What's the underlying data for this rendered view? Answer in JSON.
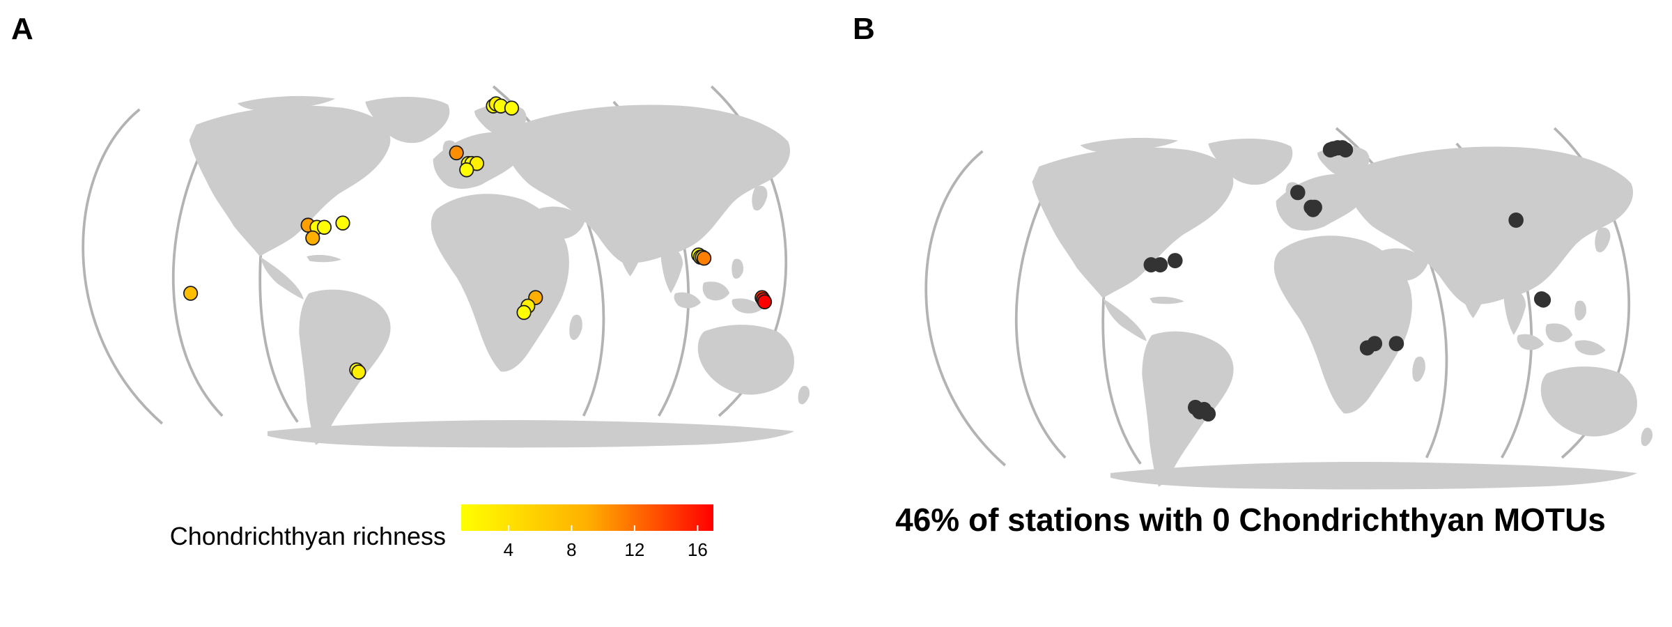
{
  "panels": {
    "a": {
      "letter": "A"
    },
    "b": {
      "letter": "B"
    }
  },
  "legend": {
    "title": "Chondrichthyan richness",
    "ticks": [
      "4",
      "8",
      "12",
      "16"
    ],
    "gradient_low": "#ffff00",
    "gradient_high": "#ff0000"
  },
  "caption": "46% of stations with 0 Chondrichthyan MOTUs",
  "colors": {
    "land": "#cccccc",
    "gridline": "#b3b3b3",
    "absent_station": "#333333",
    "outline": "#1a1a1a"
  },
  "chart_data": [
    {
      "type": "scatter",
      "panel": "A",
      "description_encoding": "color = richness",
      "points": [
        {
          "lon": 20,
          "lat": 70,
          "richness": 1
        },
        {
          "lon": 22,
          "lat": 71,
          "richness": 2
        },
        {
          "lon": 25,
          "lat": 70,
          "richness": 1
        },
        {
          "lon": 32,
          "lat": 69,
          "richness": 1
        },
        {
          "lon": -4,
          "lat": 48,
          "richness": 8
        },
        {
          "lon": 3,
          "lat": 43,
          "richness": 1
        },
        {
          "lon": 5,
          "lat": 43,
          "richness": 1
        },
        {
          "lon": 8,
          "lat": 43,
          "richness": 2
        },
        {
          "lon": 2,
          "lat": 40,
          "richness": 1
        },
        {
          "lon": -85,
          "lat": 14,
          "richness": 7
        },
        {
          "lon": -80,
          "lat": 13,
          "richness": 1
        },
        {
          "lon": -76,
          "lat": 13,
          "richness": 1
        },
        {
          "lon": -66,
          "lat": 15,
          "richness": 1
        },
        {
          "lon": -82,
          "lat": 8,
          "richness": 6
        },
        {
          "lon": -150,
          "lat": -18,
          "richness": 5
        },
        {
          "lon": 40,
          "lat": -20,
          "richness": 6
        },
        {
          "lon": 36,
          "lat": -24,
          "richness": 2
        },
        {
          "lon": 34,
          "lat": -27,
          "richness": 1
        },
        {
          "lon": 128,
          "lat": 0,
          "richness": 1
        },
        {
          "lon": 129,
          "lat": -1,
          "richness": 2
        },
        {
          "lon": 130,
          "lat": -1,
          "richness": 3
        },
        {
          "lon": 131,
          "lat": -1.5,
          "richness": 9
        },
        {
          "lon": 165,
          "lat": -20,
          "richness": 14
        },
        {
          "lon": 166,
          "lat": -21,
          "richness": 16
        },
        {
          "lon": 167,
          "lat": -22,
          "richness": 17
        },
        {
          "lon": -65,
          "lat": -54,
          "richness": 1
        },
        {
          "lon": -64,
          "lat": -55,
          "richness": 2
        }
      ]
    },
    {
      "type": "scatter",
      "panel": "B",
      "description_encoding": "stations with 0 MOTUs",
      "points": [
        {
          "lon": 16,
          "lat": 69
        },
        {
          "lon": 18,
          "lat": 69.5
        },
        {
          "lon": 21,
          "lat": 70
        },
        {
          "lon": 24,
          "lat": 70
        },
        {
          "lon": 26,
          "lat": 69
        },
        {
          "lon": -5,
          "lat": 49
        },
        {
          "lon": 3,
          "lat": 42
        },
        {
          "lon": 5,
          "lat": 42
        },
        {
          "lon": 4,
          "lat": 41
        },
        {
          "lon": 120,
          "lat": 36
        },
        {
          "lon": -85,
          "lat": 15
        },
        {
          "lon": -80,
          "lat": 15
        },
        {
          "lon": -72,
          "lat": 17
        },
        {
          "lon": 128,
          "lat": -1
        },
        {
          "lon": 129,
          "lat": -1.5
        },
        {
          "lon": 38,
          "lat": -22
        },
        {
          "lon": 34,
          "lat": -24
        },
        {
          "lon": 50,
          "lat": -22
        },
        {
          "lon": -67,
          "lat": -52
        },
        {
          "lon": -65,
          "lat": -54
        },
        {
          "lon": -62,
          "lat": -53
        },
        {
          "lon": -60,
          "lat": -55
        }
      ]
    }
  ]
}
